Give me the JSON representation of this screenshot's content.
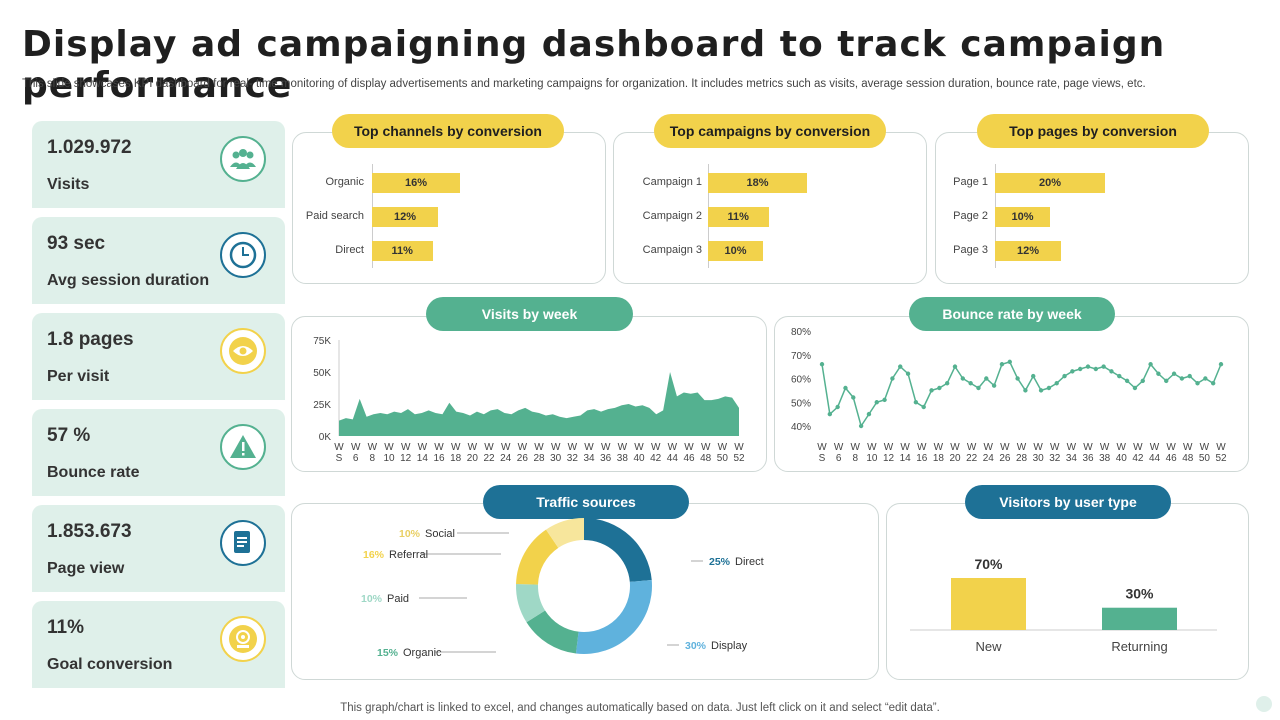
{
  "header": {
    "title": "Display ad campaigning dashboard to track campaign performance",
    "subtitle": "This slide showcases KPI dashboard for real- time monitoring of display advertisements and marketing campaigns for organization. It includes metrics such as visits, average session duration, bounce rate, page views, etc."
  },
  "kpis": [
    {
      "value": "1.029.972",
      "label": "Visits",
      "icon": "users-icon"
    },
    {
      "value": "93 sec",
      "label": "Avg session duration",
      "icon": "clock-icon"
    },
    {
      "value": "1.8 pages",
      "label": "Per visit",
      "icon": "eye-icon"
    },
    {
      "value": "57 %",
      "label": "Bounce rate",
      "icon": "warning-icon"
    },
    {
      "value": "1.853.673",
      "label": "Page view",
      "icon": "document-icon"
    },
    {
      "value": "11%",
      "label": "Goal conversion",
      "icon": "goal-icon"
    }
  ],
  "colors": {
    "yellow": "#f2d24b",
    "green": "#54b190",
    "blue": "#1e7196",
    "kpi_bg": "#dff0ea"
  },
  "footer": "This graph/chart is linked to excel, and changes automatically based on data. Just left click on it and select “edit data”.",
  "chart_data": [
    {
      "type": "bar",
      "orientation": "horizontal",
      "title": "Top channels by conversion",
      "categories": [
        "Organic",
        "Paid search",
        "Direct"
      ],
      "values": [
        16,
        12,
        11
      ],
      "labels": [
        "16%",
        "12%",
        "11%"
      ]
    },
    {
      "type": "bar",
      "orientation": "horizontal",
      "title": "Top campaigns by conversion",
      "categories": [
        "Campaign 1",
        "Campaign 2",
        "Campaign 3"
      ],
      "values": [
        18,
        11,
        10
      ],
      "labels": [
        "18%",
        "11%",
        "10%"
      ]
    },
    {
      "type": "bar",
      "orientation": "horizontal",
      "title": "Top pages by conversion",
      "categories": [
        "Page 1",
        "Page 2",
        "Page 3"
      ],
      "values": [
        20,
        10,
        12
      ],
      "labels": [
        "20%",
        "10%",
        "12%"
      ]
    },
    {
      "type": "area",
      "title": "Visits by week",
      "x_ticks": [
        "W S",
        "W 6",
        "W 8",
        "W 10",
        "W 12",
        "W 14",
        "W 16",
        "W 18",
        "W 20",
        "W 22",
        "W 24",
        "W 26",
        "W 28",
        "W 30",
        "W 32",
        "W 34",
        "W 36",
        "W 38",
        "W 40",
        "W 42",
        "W 44",
        "W 46",
        "W 48",
        "W 50",
        "W 52"
      ],
      "y_ticks": [
        "0K",
        "25K",
        "50K",
        "75K"
      ],
      "ylim": [
        0,
        75000
      ],
      "values": [
        12000,
        14000,
        13000,
        29000,
        15000,
        17000,
        18000,
        17000,
        19000,
        18000,
        21000,
        17000,
        18000,
        20000,
        18000,
        17000,
        26000,
        19000,
        18000,
        16000,
        19000,
        17000,
        20000,
        21000,
        18000,
        17000,
        20000,
        22000,
        19000,
        18000,
        16000,
        17000,
        15000,
        14000,
        15000,
        16000,
        20000,
        21000,
        19000,
        21000,
        22000,
        24000,
        25000,
        23000,
        24000,
        22000,
        17000,
        20000,
        50000,
        31000,
        34000,
        33000,
        34000,
        28000,
        28000,
        29000,
        31000,
        30000,
        22000
      ]
    },
    {
      "type": "line",
      "title": "Bounce rate by week",
      "x_ticks": [
        "W S",
        "W 6",
        "W 8",
        "W 10",
        "W 12",
        "W 14",
        "W 16",
        "W 18",
        "W 20",
        "W 22",
        "W 24",
        "W 26",
        "W 28",
        "W 30",
        "W 32",
        "W 34",
        "W 36",
        "W 38",
        "W 40",
        "W 42",
        "W 44",
        "W 46",
        "W 48",
        "W 50",
        "W 52"
      ],
      "y_ticks": [
        "40%",
        "50%",
        "60%",
        "70%",
        "80%"
      ],
      "ylim": [
        40,
        80
      ],
      "values": [
        66,
        45,
        48,
        56,
        52,
        40,
        45,
        50,
        51,
        60,
        65,
        62,
        50,
        48,
        55,
        56,
        58,
        65,
        60,
        58,
        56,
        60,
        57,
        66,
        67,
        60,
        55,
        61,
        55,
        56,
        58,
        61,
        63,
        64,
        65,
        64,
        65,
        63,
        61,
        59,
        56,
        59,
        66,
        62,
        59,
        62,
        60,
        61,
        58,
        60,
        58,
        66
      ]
    },
    {
      "type": "pie",
      "donut": true,
      "title": "Traffic sources",
      "categories": [
        "Direct",
        "Display",
        "Organic",
        "Paid",
        "Referral",
        "Social"
      ],
      "values": [
        25,
        30,
        15,
        10,
        16,
        10
      ],
      "labels": [
        "25%",
        "30%",
        "15%",
        "10%",
        "16%",
        "10%"
      ],
      "colors": [
        "#1e7196",
        "#5fb2dd",
        "#54b190",
        "#9fd8c6",
        "#f2d24b",
        "#f7e69c"
      ]
    },
    {
      "type": "bar",
      "title": "Visitors by user type",
      "categories": [
        "New",
        "Returning"
      ],
      "values": [
        70,
        30
      ],
      "labels": [
        "70%",
        "30%"
      ],
      "colors": [
        "#f2d24b",
        "#54b190"
      ]
    }
  ]
}
